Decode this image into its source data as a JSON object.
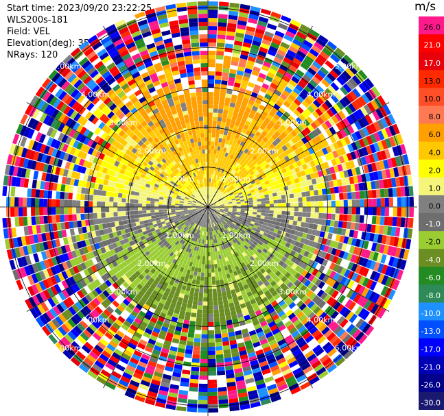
{
  "header": {
    "start_time": "Start time: 2023/09/20 23:22:25",
    "instrument": "WLS200s-181",
    "field": "Field: VEL",
    "elevation": "Elevation(deg): 35.30",
    "nrays": "NRays: 120"
  },
  "chart_data": {
    "type": "ppi",
    "field": "VEL",
    "n_rays": 120,
    "elevation_deg": 35.3,
    "range_rings": [
      {
        "range_km": 1.0,
        "label": "1.00km"
      },
      {
        "range_km": 2.0,
        "label": "2.00km"
      },
      {
        "range_km": 3.0,
        "label": "3.00km"
      },
      {
        "range_km": 4.0,
        "label": "4.00km"
      },
      {
        "range_km": 5.0,
        "label": "5.00km"
      }
    ],
    "max_range_km": 5.0,
    "spoke_angles_deg": [
      0,
      30,
      60,
      90,
      120,
      150,
      180,
      210,
      240,
      270,
      300,
      330
    ],
    "colorbar": {
      "units": "m/s",
      "levels": [
        26.0,
        21.0,
        17.0,
        13.0,
        10.0,
        8.0,
        6.0,
        4.0,
        2.0,
        1.0,
        0.0,
        -1.0,
        -2.0,
        -4.0,
        -6.0,
        -8.0,
        -10.0,
        -13.0,
        -17.0,
        -21.0,
        -26.0,
        -30.0
      ],
      "labels": [
        "26.0",
        "21.0",
        "17.0",
        "13.0",
        "10.0",
        "8.0",
        "6.0",
        "4.0",
        "2.0",
        "1.0",
        "0.0",
        "-1.0",
        "-2.0",
        "-4.0",
        "-6.0",
        "-8.0",
        "-10.0",
        "-13.0",
        "-17.0",
        "-21.0",
        "-26.0",
        "-30.0"
      ],
      "colors": [
        "#ff1a8c",
        "#ff0000",
        "#e8000a",
        "#ff2a00",
        "#ff4f28",
        "#ff7a52",
        "#ff9f00",
        "#ffc800",
        "#ffff00",
        "#f5f57a",
        "#808080",
        "#6e6e6e",
        "#9acd32",
        "#6b8e23",
        "#228b22",
        "#2e8b57",
        "#1e90ff",
        "#0050ff",
        "#0000ff",
        "#0000b4",
        "#00008b",
        "#191970"
      ]
    }
  }
}
